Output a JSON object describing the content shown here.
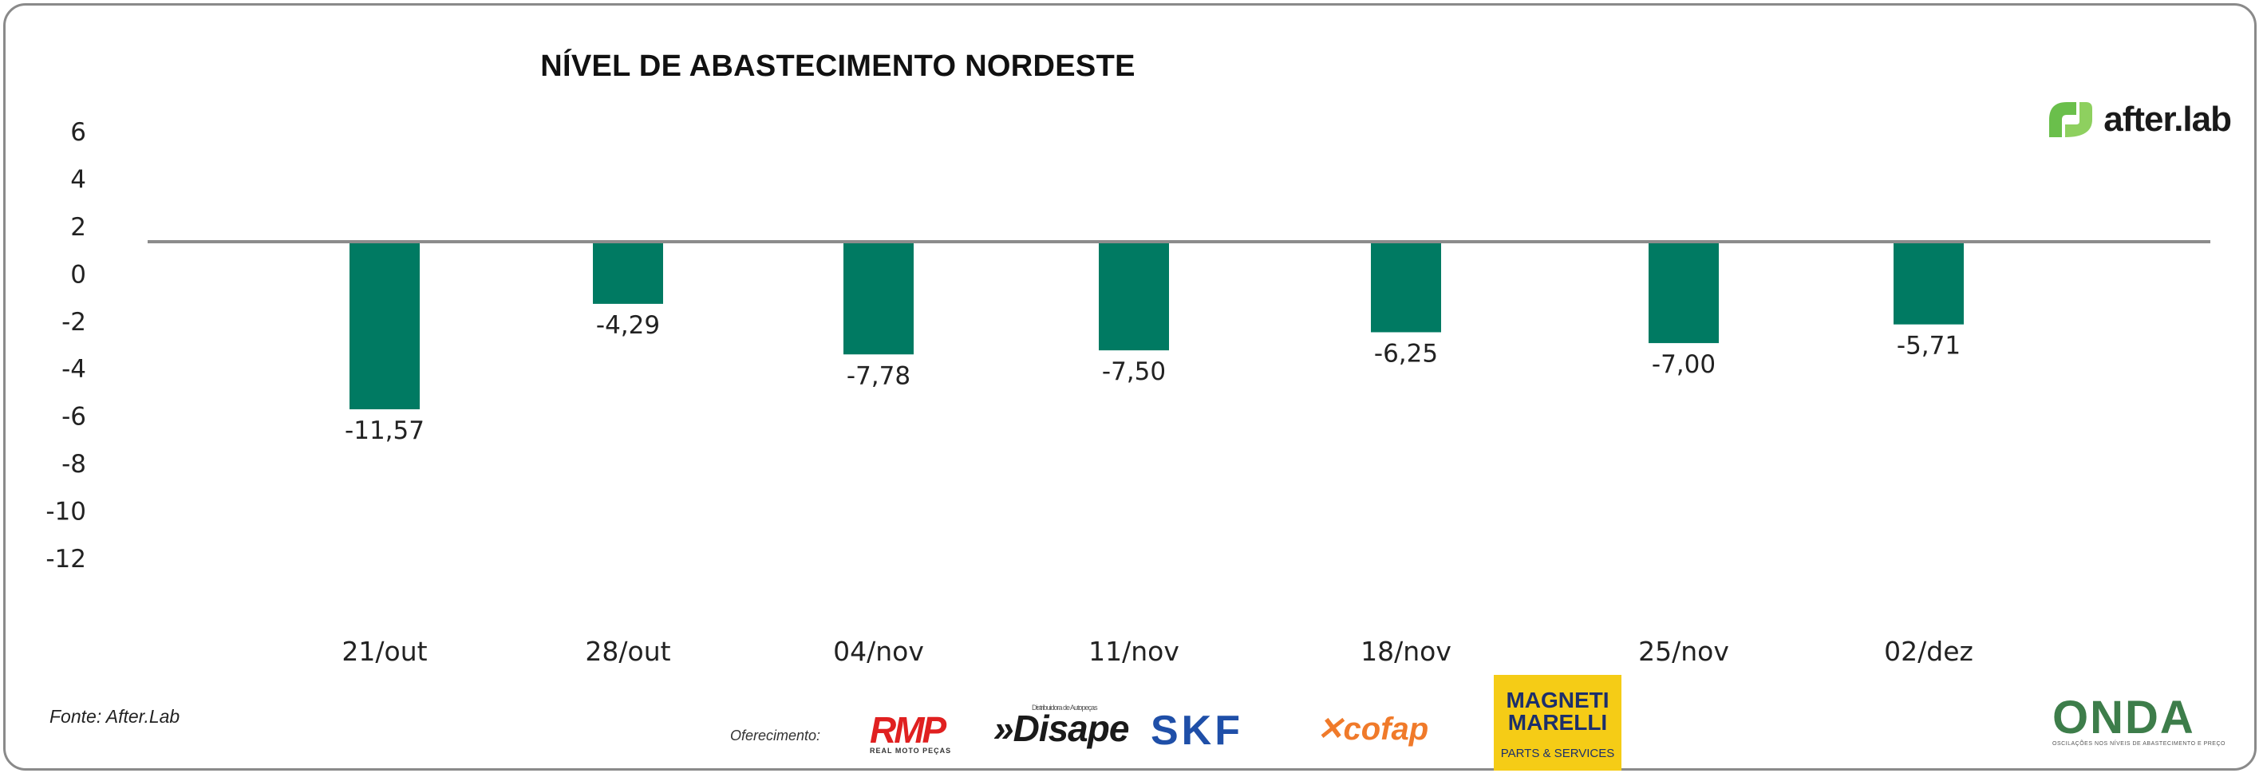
{
  "chart_data": {
    "type": "bar",
    "title": "NÍVEL DE ABASTECIMENTO NORDESTE",
    "categories": [
      "21/out",
      "28/out",
      "04/nov",
      "11/nov",
      "18/nov",
      "25/nov",
      "02/dez"
    ],
    "values": [
      -11.57,
      -4.29,
      -7.78,
      -7.5,
      -6.25,
      -7.0,
      -5.71
    ],
    "data_labels": [
      "-11,57",
      "-4,29",
      "-7,78",
      "-7,50",
      "-6,25",
      "-7,00",
      "-5,71"
    ],
    "y_ticks": [
      "6",
      "4",
      "2",
      "0",
      "-2",
      "-4",
      "-6",
      "-8",
      "-10",
      "-12"
    ],
    "ylim": [
      -12,
      6
    ],
    "baseline": 0,
    "xlabel": "",
    "ylabel": "",
    "bar_color": "#007a62",
    "axis_color": "#8c8c8c",
    "grid": false,
    "legend": "none"
  },
  "source": "Fonte: After.Lab",
  "brand": {
    "name": "after.lab",
    "color": "#6abf4b"
  },
  "sponsors": {
    "label": "Oferecimento:",
    "rmp": {
      "name": "RMP",
      "tagline": "REAL MOTO PEÇAS"
    },
    "disape": {
      "name": "Disape",
      "tagline": "Distribuidora de Autopeças"
    },
    "skf": {
      "name": "SKF"
    },
    "cofap": {
      "name": "cofap"
    },
    "magneti": {
      "name": "MAGNETI MARELLI",
      "tagline": "PARTS & SERVICES"
    },
    "onda": {
      "name": "ONDA",
      "tagline": "OSCILAÇÕES NOS NÍVEIS DE ABASTECIMENTO E PREÇO"
    }
  }
}
